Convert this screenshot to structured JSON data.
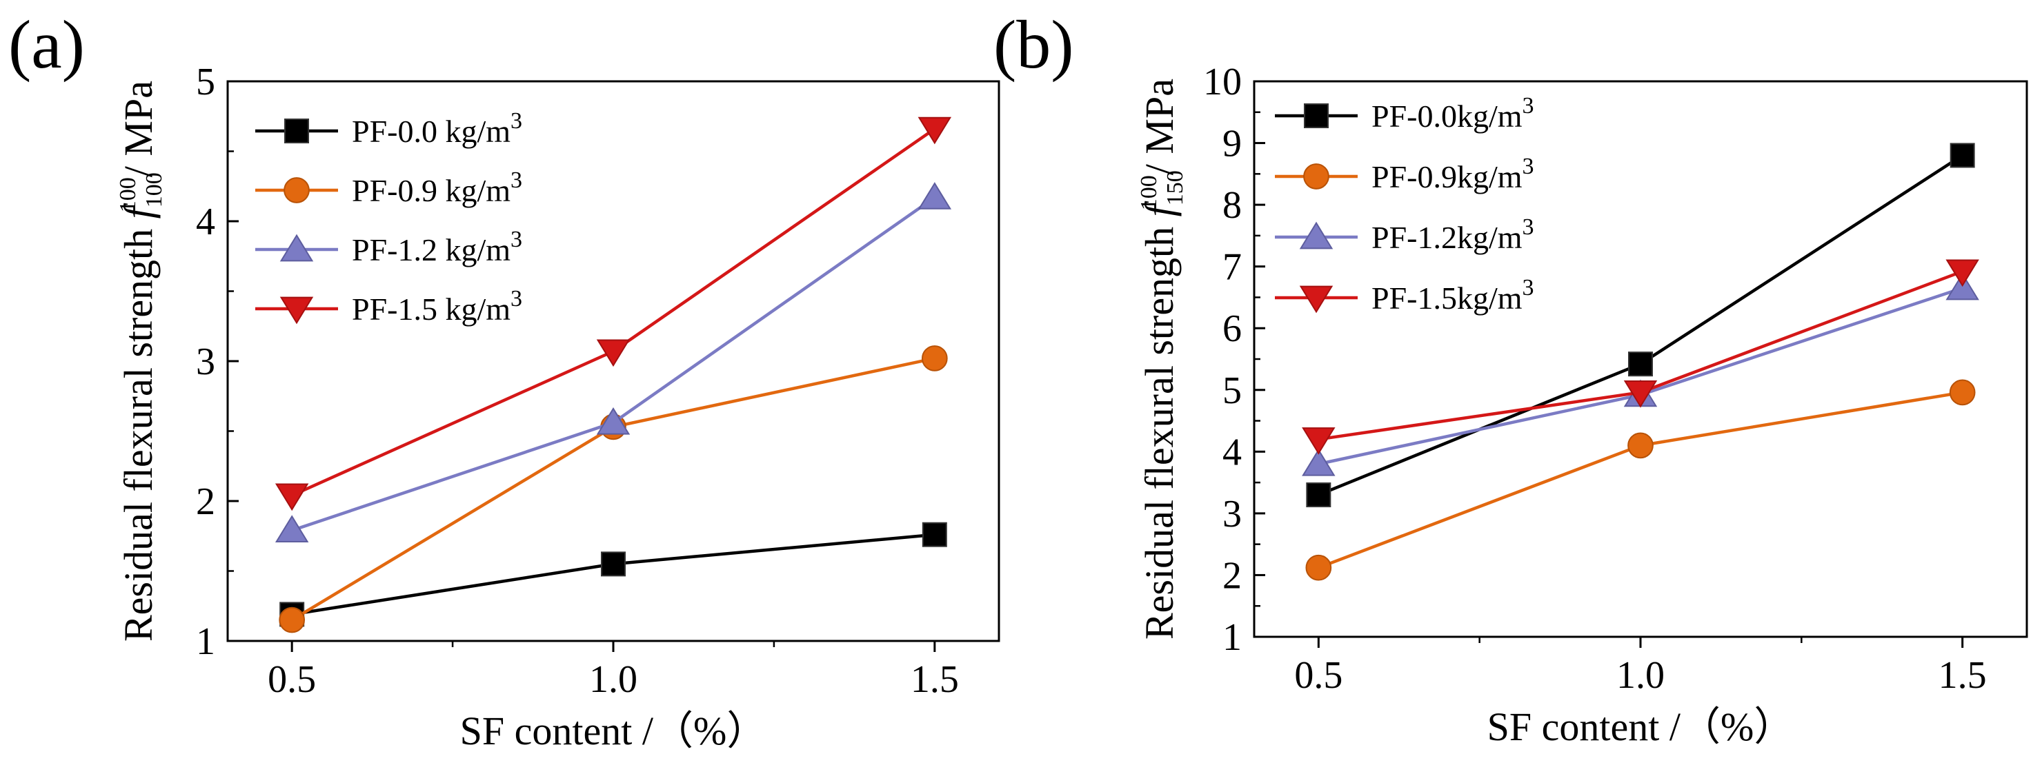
{
  "chart_data": [
    {
      "panel_label": "(a)",
      "type": "line",
      "xlabel": "SF content /（%）",
      "ylabel_parts": {
        "prefix": "Residual flexural strength ",
        "symbol": "f",
        "sub": "100",
        "sup": "100",
        "suffix": "/ MPa"
      },
      "x": [
        0.5,
        1.0,
        1.5
      ],
      "x_tick_labels": [
        "0.5",
        "1.0",
        "1.5"
      ],
      "xlim": [
        0.4,
        1.6
      ],
      "ylim": [
        1,
        5
      ],
      "y_ticks": [
        1,
        2,
        3,
        4,
        5
      ],
      "y_tick_labels": [
        "1",
        "2",
        "3",
        "4",
        "5"
      ],
      "legend_position": "top-left",
      "series": [
        {
          "name": "PF-0.0 kg/m",
          "sup": "3",
          "marker": "square",
          "color": "#000000",
          "values": [
            1.19,
            1.55,
            1.76
          ]
        },
        {
          "name": "PF-0.9 kg/m",
          "sup": "3",
          "marker": "circle",
          "color": "#e2680f",
          "values": [
            1.15,
            2.53,
            3.02
          ]
        },
        {
          "name": "PF-1.2 kg/m",
          "sup": "3",
          "marker": "triangle-up",
          "color": "#7b7bc4",
          "values": [
            1.79,
            2.56,
            4.17
          ]
        },
        {
          "name": "PF-1.5 kg/m",
          "sup": "3",
          "marker": "triangle-down",
          "color": "#d41717",
          "values": [
            2.04,
            3.07,
            4.66
          ]
        }
      ]
    },
    {
      "panel_label": "(b)",
      "type": "line",
      "xlabel": "SF content /（%）",
      "ylabel_parts": {
        "prefix": "Residual flexural strength ",
        "symbol": "f",
        "sub": "150",
        "sup": "100",
        "suffix": "/ MPa"
      },
      "x": [
        0.5,
        1.0,
        1.5
      ],
      "x_tick_labels": [
        "0.5",
        "1.0",
        "1.5"
      ],
      "xlim": [
        0.4,
        1.6
      ],
      "ylim": [
        1,
        10
      ],
      "y_ticks": [
        1,
        2,
        3,
        4,
        5,
        6,
        7,
        8,
        9,
        10
      ],
      "y_tick_labels": [
        "1",
        "2",
        "3",
        "4",
        "5",
        "6",
        "7",
        "8",
        "9",
        "10"
      ],
      "legend_position": "top-left",
      "series": [
        {
          "name": "PF-0.0kg/m",
          "sup": "3",
          "marker": "square",
          "color": "#000000",
          "values": [
            3.3,
            5.42,
            8.8
          ]
        },
        {
          "name": "PF-0.9kg/m",
          "sup": "3",
          "marker": "circle",
          "color": "#e2680f",
          "values": [
            2.12,
            4.1,
            4.96
          ]
        },
        {
          "name": "PF-1.2kg/m",
          "sup": "3",
          "marker": "triangle-up",
          "color": "#7b7bc4",
          "values": [
            3.8,
            4.92,
            6.65
          ]
        },
        {
          "name": "PF-1.5kg/m",
          "sup": "3",
          "marker": "triangle-down",
          "color": "#d41717",
          "values": [
            4.2,
            4.96,
            6.92
          ]
        }
      ]
    }
  ]
}
